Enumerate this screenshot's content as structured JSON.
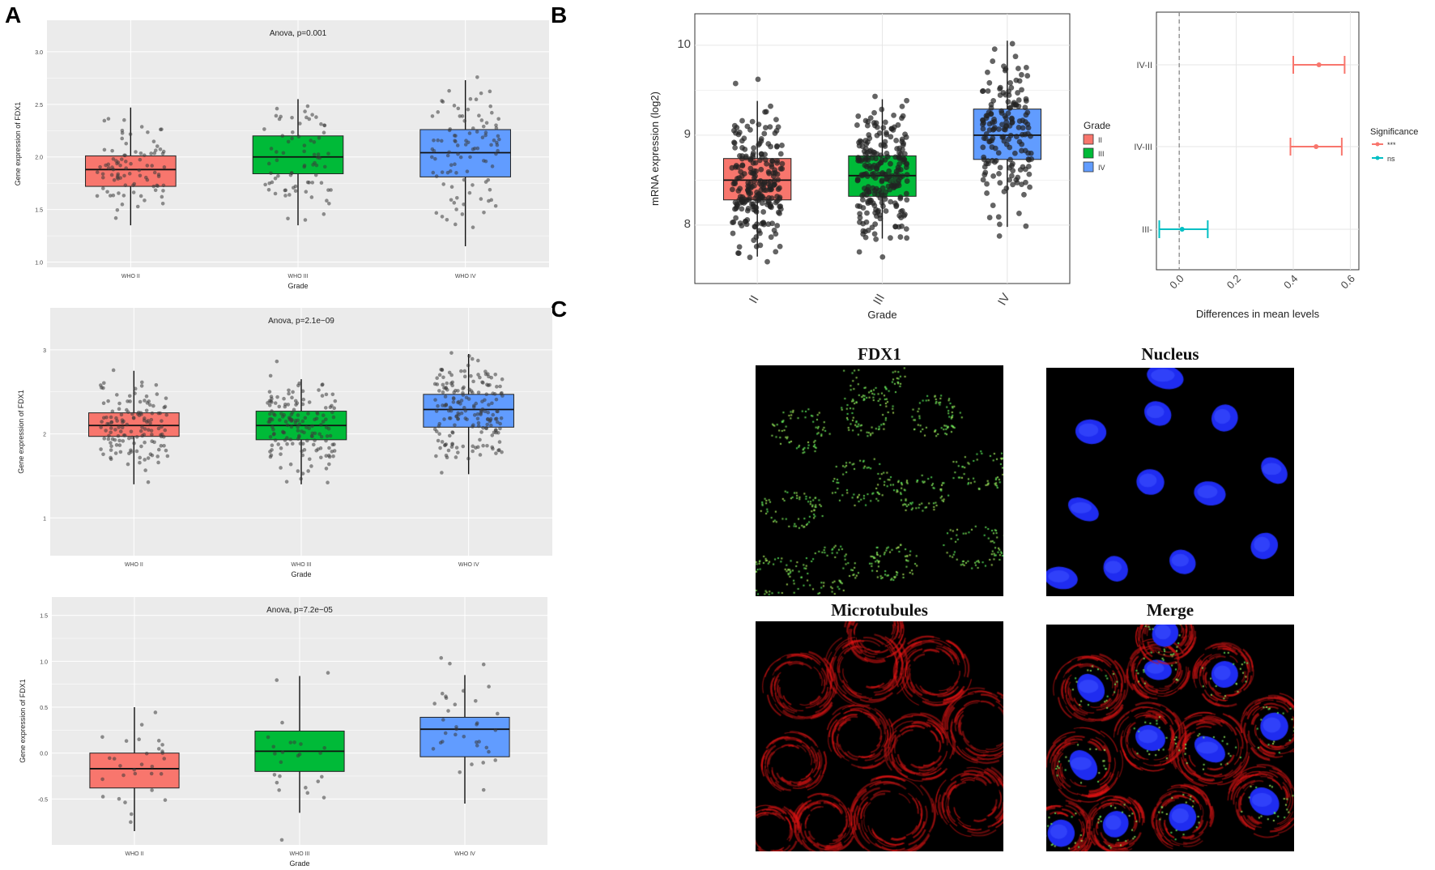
{
  "panels": {
    "a": "A",
    "b": "B",
    "c": "C"
  },
  "colors": {
    "grade2": "#f8766d",
    "grade3": "#00ba38",
    "grade4": "#619cff",
    "sig_yes": "#f8766d",
    "sig_no": "#00bfc4"
  },
  "chart_data": [
    {
      "type": "box",
      "title": "Anova, p=0.001",
      "xlabel": "Grade",
      "ylabel": "Gene expression of FDX1",
      "categories": [
        "WHO II",
        "WHO III",
        "WHO IV"
      ],
      "yticks": [
        "1.0",
        "1.5",
        "2.0",
        "2.5",
        "3.0"
      ],
      "ylim": [
        0.95,
        3.3
      ],
      "boxes": [
        {
          "q1": 1.72,
          "median": 1.88,
          "q3": 2.01,
          "lower": 1.35,
          "upper": 2.47
        },
        {
          "q1": 1.84,
          "median": 2.0,
          "q3": 2.2,
          "lower": 1.35,
          "upper": 2.55
        },
        {
          "q1": 1.81,
          "median": 2.04,
          "q3": 2.26,
          "lower": 1.15,
          "upper": 2.73
        }
      ],
      "n_points": [
        90,
        75,
        100
      ]
    },
    {
      "type": "box",
      "title": "Anova, p=2.1e−09",
      "xlabel": "Grade",
      "ylabel": "Gene expression of FDX1",
      "categories": [
        "WHO II",
        "WHO III",
        "WHO IV"
      ],
      "yticks": [
        "1",
        "2",
        "3"
      ],
      "ylim": [
        0.55,
        3.5
      ],
      "boxes": [
        {
          "q1": 1.97,
          "median": 2.1,
          "q3": 2.25,
          "lower": 1.4,
          "upper": 2.75
        },
        {
          "q1": 1.93,
          "median": 2.1,
          "q3": 2.27,
          "lower": 1.4,
          "upper": 2.65
        },
        {
          "q1": 2.08,
          "median": 2.29,
          "q3": 2.47,
          "lower": 1.52,
          "upper": 2.95
        }
      ],
      "n_points": [
        140,
        160,
        190
      ]
    },
    {
      "type": "box",
      "title": "Anova, p=7.2e−05",
      "xlabel": "Grade",
      "ylabel": "Gene expression of FDX1",
      "categories": [
        "WHO II",
        "WHO III",
        "WHO IV"
      ],
      "yticks": [
        "-0.5",
        "0.0",
        "0.5",
        "1.0",
        "1.5"
      ],
      "ylim": [
        -1.0,
        1.7
      ],
      "boxes": [
        {
          "q1": -0.38,
          "median": -0.17,
          "q3": 0.0,
          "lower": -0.85,
          "upper": 0.5
        },
        {
          "q1": -0.2,
          "median": 0.02,
          "q3": 0.24,
          "lower": -0.65,
          "upper": 0.84
        },
        {
          "q1": -0.04,
          "median": 0.26,
          "q3": 0.39,
          "lower": -0.55,
          "upper": 0.85
        }
      ],
      "n_points": [
        30,
        25,
        35
      ]
    },
    {
      "type": "box",
      "xlabel": "Grade",
      "ylabel": "mRNA expression (log2)",
      "categories": [
        "II",
        "III",
        "IV"
      ],
      "yticks": [
        "8",
        "9",
        "10"
      ],
      "ylim": [
        7.35,
        10.35
      ],
      "legend_title": "Grade",
      "legend": [
        "II",
        "III",
        "IV"
      ],
      "boxes": [
        {
          "q1": 8.28,
          "median": 8.5,
          "q3": 8.74,
          "lower": 7.65,
          "upper": 9.38
        },
        {
          "q1": 8.32,
          "median": 8.55,
          "q3": 8.77,
          "lower": 7.85,
          "upper": 9.4
        },
        {
          "q1": 8.73,
          "median": 9.0,
          "q3": 9.29,
          "lower": 7.98,
          "upper": 10.05
        }
      ],
      "n_points": [
        240,
        240,
        170
      ]
    },
    {
      "type": "errorbar",
      "xlabel": "Differences in mean levels",
      "xticks": [
        "0.0",
        "0.2",
        "0.4",
        "0.6"
      ],
      "xlim": [
        -0.08,
        0.63
      ],
      "legend_title": "Significance",
      "legend": [
        "***",
        "ns"
      ],
      "rows": [
        {
          "label": "IV-II",
          "estimate": 0.49,
          "low": 0.4,
          "high": 0.58,
          "sig": "***"
        },
        {
          "label": "IV-III",
          "estimate": 0.48,
          "low": 0.39,
          "high": 0.57,
          "sig": "***"
        },
        {
          "label": "III-",
          "estimate": 0.01,
          "low": -0.07,
          "high": 0.1,
          "sig": "ns"
        }
      ]
    }
  ],
  "micrographs": [
    {
      "title": "FDX1",
      "channel": "green"
    },
    {
      "title": "Nucleus",
      "channel": "blue"
    },
    {
      "title": "Microtubules",
      "channel": "red"
    },
    {
      "title": "Merge",
      "channel": "merge"
    }
  ]
}
